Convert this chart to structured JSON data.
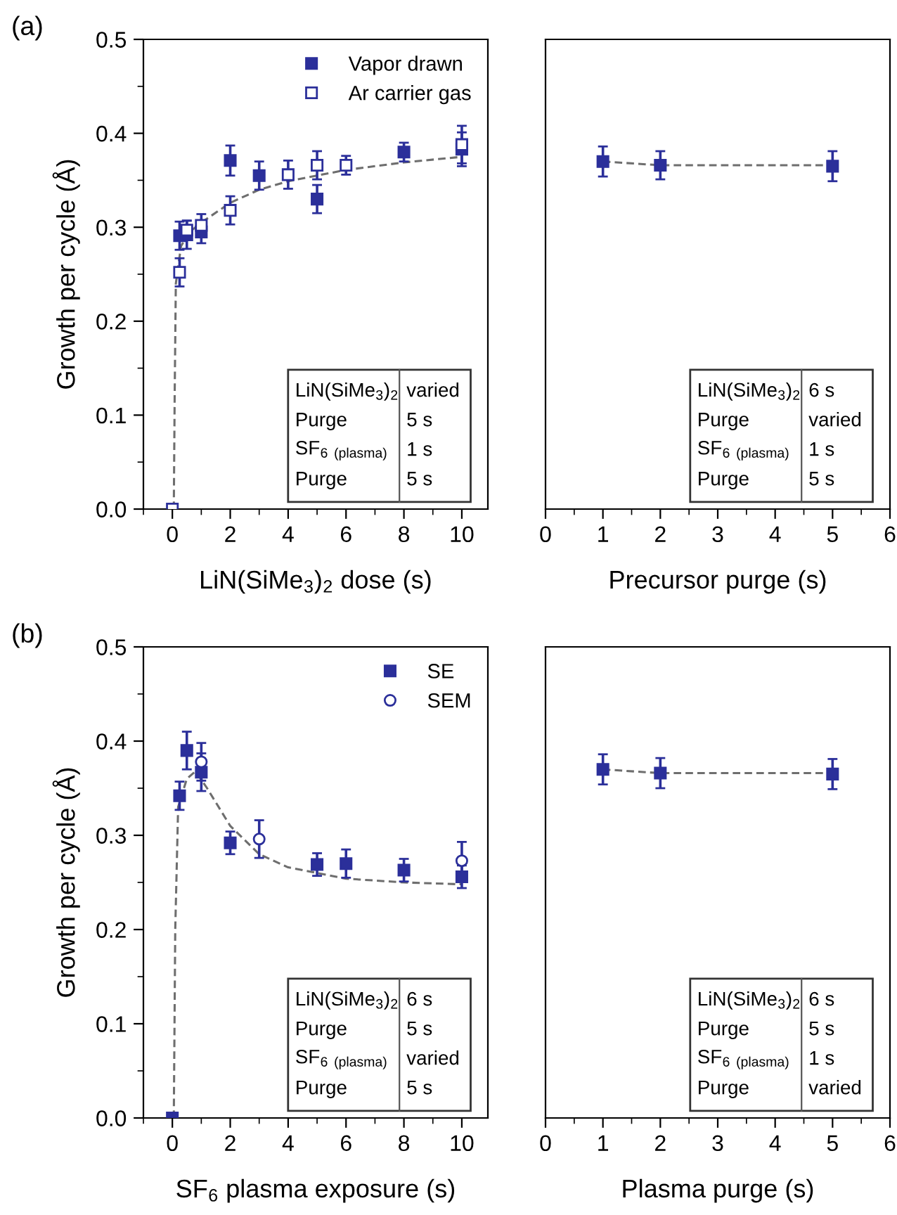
{
  "chart_data": [
    {
      "type": "scatter",
      "xlabel": "LiN(SiMe$_{3}$)$_{2}$ dose (s)",
      "ylabel": "Growth per cycle (Å)",
      "xlim": [
        -1,
        10.9
      ],
      "ylim": [
        0,
        0.5
      ],
      "xticks": [
        0,
        2,
        4,
        6,
        8,
        10
      ],
      "yticks": [
        {
          "value": 0,
          "label": "0.0"
        },
        0.1,
        0.2,
        0.3,
        0.4,
        0.5
      ],
      "legend": "top right",
      "grid": false,
      "annotations": [
        "(a)",
        "LiN(SiMe$_{3}$)$_{2}$",
        "varied",
        "Purge",
        "5 s",
        "SF$_{6}$ $_{(plasma)}$",
        "1 s",
        "Purge",
        "5 s"
      ],
      "series": [
        {
          "name": "Vapor drawn",
          "color": "#2b2f9a",
          "marker": "square",
          "x": [
            0.25,
            0.5,
            1,
            2,
            3,
            5,
            8,
            10
          ],
          "values": [
            0.291,
            0.292,
            0.295,
            0.371,
            0.355,
            0.33,
            0.38,
            0.383
          ],
          "errors": [
            0.015,
            0.015,
            0.012,
            0.016,
            0.015,
            0.015,
            0.01,
            0.018
          ]
        },
        {
          "name": "Ar carrier gas",
          "color": "#2b2f9a",
          "marker": "square",
          "x": [
            0,
            0.25,
            0.5,
            1,
            2,
            4,
            5,
            6,
            10
          ],
          "values": [
            0.0,
            0.252,
            0.297,
            0.302,
            0.318,
            0.356,
            0.366,
            0.366,
            0.388
          ],
          "errors": [
            0.005,
            0.015,
            0.01,
            0.012,
            0.015,
            0.015,
            0.015,
            0.01,
            0.02
          ]
        },
        {
          "type": "line",
          "color": "#6e6e6e",
          "line_style": "dashed",
          "marker": "none",
          "x": [
            0.05,
            0.08,
            0.12,
            0.3,
            0.6,
            1,
            2,
            3,
            4,
            5,
            6,
            8,
            10
          ],
          "values": [
            0.0,
            0.12,
            0.24,
            0.28,
            0.295,
            0.305,
            0.326,
            0.34,
            0.349,
            0.355,
            0.361,
            0.369,
            0.375
          ]
        }
      ]
    },
    {
      "type": "scatter",
      "xlabel": "Precursor purge (s)",
      "xlim": [
        0,
        6
      ],
      "ylim": [
        0,
        0.5
      ],
      "xticks": [
        0,
        1,
        2,
        3,
        4,
        5,
        6
      ],
      "tick_labels": "x",
      "legend": false,
      "grid": false,
      "annotations": [
        "LiN(SiMe$_{3}$)$_{2}$",
        "6 s",
        "Purge",
        "varied",
        "SF$_{6}$ $_{(plasma)}$",
        "1 s",
        "Purge",
        "5 s"
      ],
      "series": [
        {
          "color": "#2b2f9a",
          "marker": "square",
          "x": [
            1,
            2,
            5
          ],
          "values": [
            0.37,
            0.366,
            0.365
          ],
          "errors": [
            0.016,
            0.015,
            0.016
          ]
        },
        {
          "type": "line",
          "color": "#6e6e6e",
          "line_style": "dashed",
          "marker": "none",
          "x": [
            1,
            2,
            5
          ],
          "values": [
            0.37,
            0.366,
            0.366
          ]
        }
      ]
    },
    {
      "type": "scatter",
      "xlabel": "SF$_{6}$ plasma exposure (s)",
      "ylabel": "Growth per cycle (Å)",
      "xlim": [
        -1,
        10.9
      ],
      "ylim": [
        0,
        0.5
      ],
      "xticks": [
        0,
        2,
        4,
        6,
        8,
        10
      ],
      "yticks": [
        {
          "value": 0,
          "label": "0.0"
        },
        0.1,
        0.2,
        0.3,
        0.4,
        0.5
      ],
      "legend": "top right",
      "grid": false,
      "annotations": [
        "(b)",
        "LiN(SiMe$_{3}$)$_{2}$",
        "6 s",
        "Purge",
        "5 s",
        "SF$_{6}$ $_{(plasma)}$",
        "varied",
        "Purge",
        "5 s"
      ],
      "series": [
        {
          "name": "SE",
          "color": "#2b2f9a",
          "marker": "square",
          "x": [
            0,
            0.25,
            0.5,
            1,
            2,
            5,
            6,
            8,
            10
          ],
          "values": [
            0.0,
            0.342,
            0.39,
            0.367,
            0.292,
            0.269,
            0.27,
            0.263,
            0.256
          ],
          "errors": [
            0.005,
            0.015,
            0.02,
            0.02,
            0.012,
            0.012,
            0.015,
            0.012,
            0.012
          ]
        },
        {
          "name": "SEM",
          "color": "#2b2f9a",
          "marker": "circle",
          "x": [
            1,
            3,
            10
          ],
          "values": [
            0.378,
            0.296,
            0.273
          ],
          "errors": [
            0.02,
            0.02,
            0.02
          ]
        },
        {
          "type": "line",
          "color": "#6e6e6e",
          "line_style": "dashed",
          "marker": "none",
          "x": [
            0.05,
            0.1,
            0.2,
            0.5,
            0.8,
            1.2,
            2,
            3,
            4,
            6,
            8,
            10
          ],
          "values": [
            0.0,
            0.2,
            0.33,
            0.36,
            0.368,
            0.35,
            0.31,
            0.28,
            0.266,
            0.254,
            0.25,
            0.248
          ]
        }
      ]
    },
    {
      "type": "scatter",
      "xlabel": "Plasma purge (s)",
      "xlim": [
        0,
        6
      ],
      "ylim": [
        0,
        0.5
      ],
      "xticks": [
        0,
        1,
        2,
        3,
        4,
        5,
        6
      ],
      "tick_labels": "x",
      "legend": false,
      "grid": false,
      "annotations": [
        "LiN(SiMe$_{3}$)$_{2}$",
        "6 s",
        "Purge",
        "5 s",
        "SF$_{6}$ $_{(plasma)}$",
        "1 s",
        "Purge",
        "varied"
      ],
      "series": [
        {
          "color": "#2b2f9a",
          "marker": "square",
          "x": [
            1,
            2,
            5
          ],
          "values": [
            0.37,
            0.366,
            0.365
          ],
          "errors": [
            0.016,
            0.016,
            0.016
          ]
        },
        {
          "type": "line",
          "color": "#6e6e6e",
          "line_style": "dashed",
          "marker": "none",
          "x": [
            1,
            2,
            5
          ],
          "values": [
            0.37,
            0.366,
            0.366
          ]
        }
      ]
    }
  ]
}
